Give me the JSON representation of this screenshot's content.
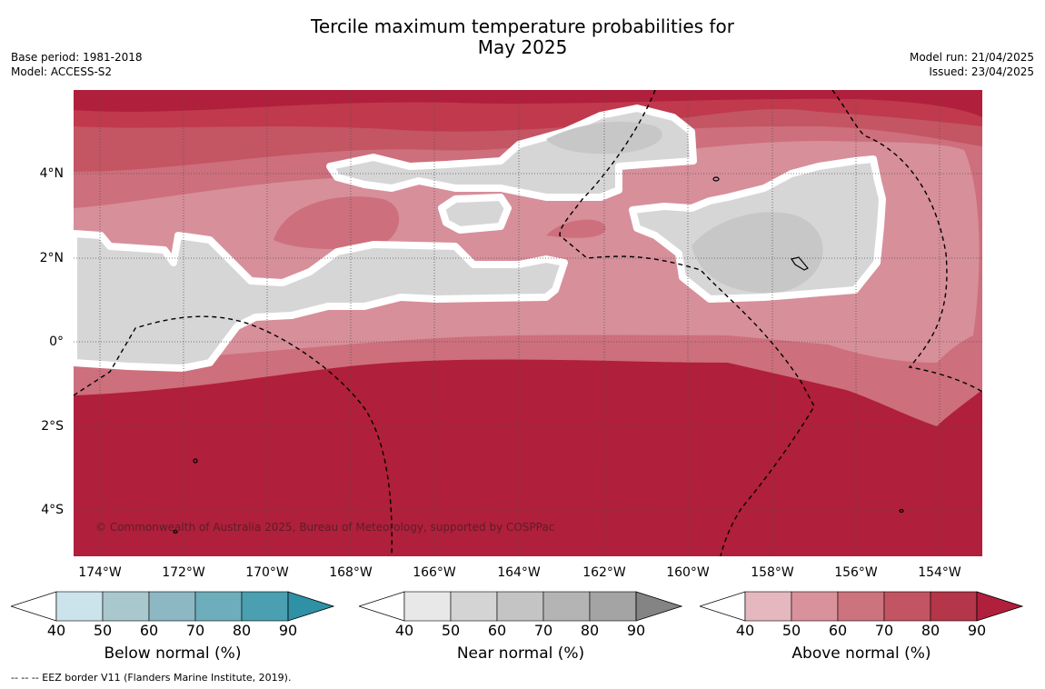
{
  "title_line1": "Tercile maximum temperature probabilities for",
  "title_line2": "May 2025",
  "meta": {
    "base_period": "Base period: 1981-2018",
    "model": "Model: ACCESS-S2",
    "model_run": "Model run: 21/04/2025",
    "issued": "Issued: 23/04/2025"
  },
  "map": {
    "lon_range": [
      -174.6,
      -152.9
    ],
    "lat_range": [
      -5.2,
      5.9
    ],
    "lat_ticks": [
      {
        "value": 4,
        "label": "4°N"
      },
      {
        "value": 2,
        "label": "2°N"
      },
      {
        "value": 0,
        "label": "0°"
      },
      {
        "value": -2,
        "label": "2°S"
      },
      {
        "value": -4,
        "label": "4°S"
      }
    ],
    "lon_ticks": [
      {
        "value": -174,
        "label": "174°W"
      },
      {
        "value": -172,
        "label": "172°W"
      },
      {
        "value": -170,
        "label": "170°W"
      },
      {
        "value": -168,
        "label": "168°W"
      },
      {
        "value": -166,
        "label": "166°W"
      },
      {
        "value": -164,
        "label": "164°W"
      },
      {
        "value": -162,
        "label": "162°W"
      },
      {
        "value": -160,
        "label": "160°W"
      },
      {
        "value": -158,
        "label": "158°W"
      },
      {
        "value": -156,
        "label": "156°W"
      },
      {
        "value": -154,
        "label": "154°W"
      }
    ],
    "copyright": "© Commonwealth of Australia 2025, Bureau of Meteorology, supported by COSPPac"
  },
  "colorbars": [
    {
      "title": "Below normal (%)",
      "ticks": [
        "40",
        "50",
        "60",
        "70",
        "80",
        "90"
      ],
      "colors": [
        "#cbe3ea",
        "#a9c8ce",
        "#8db7c3",
        "#6eadbb",
        "#4a9fb1",
        "#2e91a6"
      ]
    },
    {
      "title": "Near normal (%)",
      "ticks": [
        "40",
        "50",
        "60",
        "70",
        "80",
        "90"
      ],
      "colors": [
        "#e8e8e8",
        "#d4d4d4",
        "#c4c4c4",
        "#b4b4b4",
        "#a4a4a4",
        "#848484"
      ]
    },
    {
      "title": "Above normal (%)",
      "ticks": [
        "40",
        "50",
        "60",
        "70",
        "80",
        "90"
      ],
      "colors": [
        "#e4b8be",
        "#d9929b",
        "#cd737d",
        "#c25561",
        "#b53549",
        "#b01f3b"
      ]
    }
  ],
  "footnote": "--  --  -- EEZ border V11 (Flanders Marine Institute, 2019)."
}
